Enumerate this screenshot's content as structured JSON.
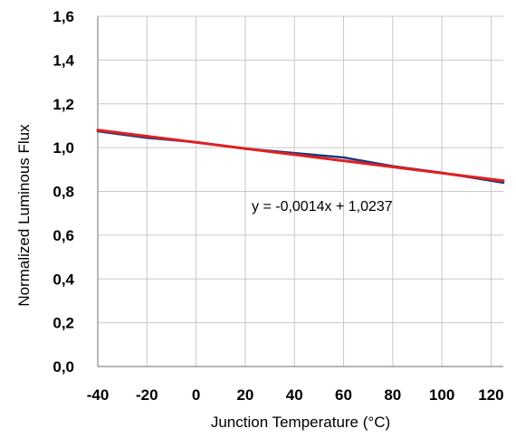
{
  "chart_data": {
    "type": "line",
    "xlabel": "Junction Temperature (°C)",
    "ylabel": "Normalized Luminous Flux",
    "xlim": [
      -40,
      125
    ],
    "ylim": [
      0.0,
      1.6
    ],
    "x_ticks": [
      -40,
      -20,
      0,
      20,
      40,
      60,
      80,
      100,
      120
    ],
    "y_ticks": [
      0.0,
      0.2,
      0.4,
      0.6,
      0.8,
      1.0,
      1.2,
      1.4,
      1.6
    ],
    "x_tick_labels": [
      "-40",
      "-20",
      "0",
      "20",
      "40",
      "60",
      "80",
      "100",
      "120"
    ],
    "y_tick_labels": [
      "0,0",
      "0,2",
      "0,4",
      "0,6",
      "0,8",
      "1,0",
      "1,2",
      "1,4",
      "1,6"
    ],
    "grid": true,
    "series": [
      {
        "color": "#1f3a7a",
        "x": [
          -40,
          -20,
          0,
          20,
          40,
          60,
          80,
          100,
          125
        ],
        "y": [
          1.075,
          1.045,
          1.025,
          0.995,
          0.975,
          0.955,
          0.915,
          0.885,
          0.84
        ]
      },
      {
        "color": "#e02020",
        "trendline": true,
        "x": [
          -40,
          125
        ],
        "y": [
          1.0797,
          0.8487
        ]
      }
    ],
    "annotations": [
      {
        "text": "y = -0,0014x + 1,0237"
      }
    ]
  }
}
